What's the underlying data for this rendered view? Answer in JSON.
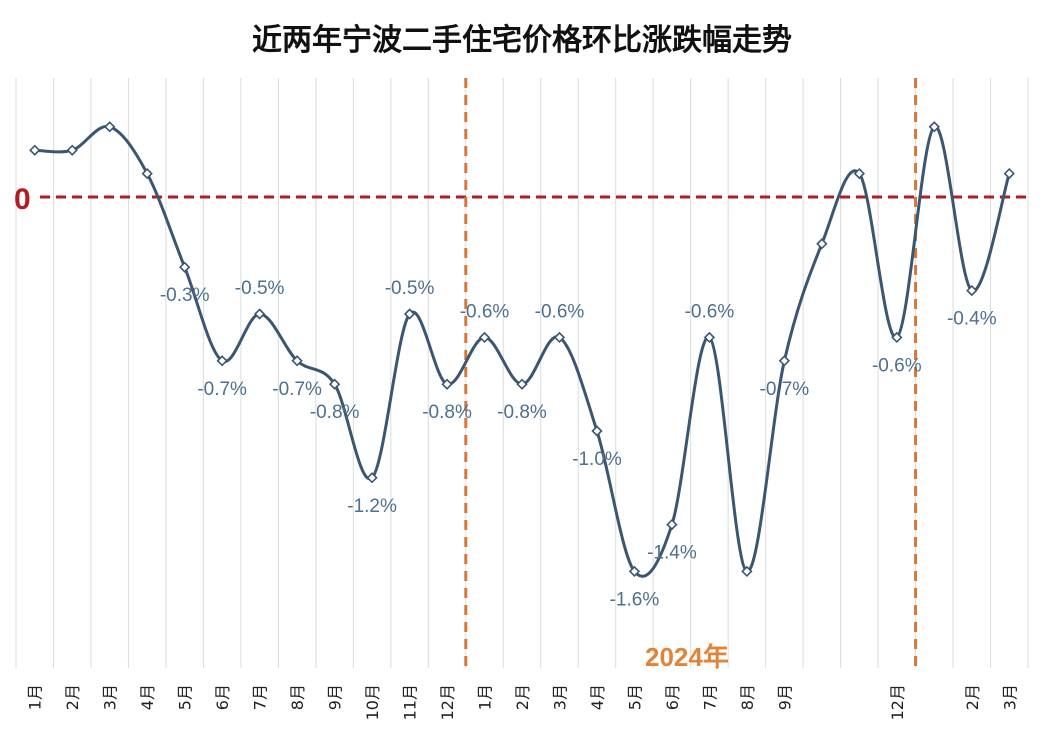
{
  "chart_data": {
    "type": "line",
    "title": "近两年宁波二手住宅价格环比涨跌幅走势",
    "zero_label": "0",
    "year_marker_label": "2024年",
    "categories": [
      "1月",
      "2月",
      "3月",
      "4月",
      "5月",
      "6月",
      "7月",
      "8月",
      "9月",
      "10月",
      "11月",
      "12月",
      "1月",
      "2月",
      "3月",
      "4月",
      "5月",
      "6月",
      "7月",
      "8月",
      "9月",
      "",
      "",
      "12月",
      "",
      "2月",
      "3月"
    ],
    "series": [
      {
        "values": [
          0.4,
          0.4,
          0.6,
          0.2,
          -0.6,
          -1.4,
          -1.0,
          -1.4,
          -1.6,
          -2.4,
          -1.0,
          -1.6,
          -1.2,
          -1.6,
          -1.2,
          -2.0,
          -3.2,
          -2.8,
          -1.2,
          -3.2,
          -1.4,
          -0.4,
          0.2,
          -1.2,
          0.6,
          -0.8,
          0.2
        ],
        "labels": [
          "",
          "",
          "",
          "",
          "-0.3%",
          "-0.7%",
          "-0.5%",
          "-0.7%",
          "-0.8%",
          "-1.2%",
          "-0.5%",
          "-0.8%",
          "-0.6%",
          "-0.8%",
          "-0.6%",
          "-1.0%",
          "-1.6%",
          "-1.4%",
          "-0.6%",
          "",
          "-0.7%",
          "",
          "",
          "-0.6%",
          "",
          "-0.4%",
          ""
        ]
      }
    ],
    "ylim": [
      -3.5,
      0.8
    ],
    "grid": true,
    "year_separators_after_index": [
      11,
      23
    ],
    "colors": {
      "line": "#3a5673",
      "zero_line": "#b01e23",
      "separator": "#d9773a",
      "grid": "#dcdcdc",
      "label": "#4e6f8f"
    }
  }
}
